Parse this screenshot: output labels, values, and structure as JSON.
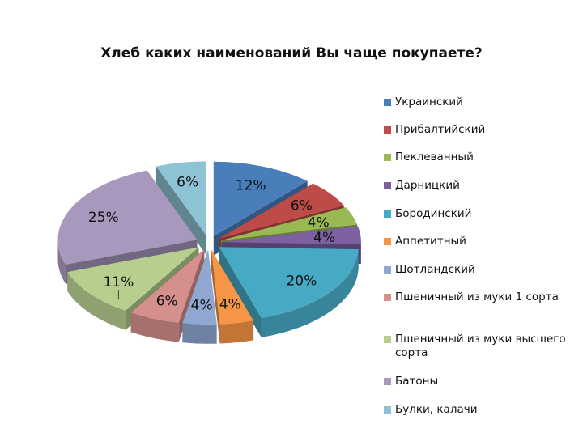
{
  "chart_data": {
    "type": "pie",
    "style": "3d-exploded",
    "title": "Хлеб каких наименований Вы чаще покупаете?",
    "legend_position": "right",
    "categories": [
      "Украинский",
      "Прибалтийский",
      "Пеклеванный",
      "Дарницкий",
      "Бородинский",
      "Аппетитный",
      "Шотландский",
      "Пшеничный из муки 1 сорта",
      "Пшеничный из муки высшего сорта",
      "Батоны",
      "Булки, калачи"
    ],
    "values": [
      12,
      6,
      4,
      4,
      20,
      4,
      4,
      6,
      11,
      25,
      6
    ],
    "labels": [
      "12%",
      "6%",
      "4%",
      "4%",
      "20%",
      "4%",
      "4%",
      "6%",
      "11%",
      "25%",
      "6%"
    ],
    "colors": [
      "#4A7EBB",
      "#BE4B48",
      "#98B954",
      "#7D60A0",
      "#46AAC5",
      "#F79646",
      "#8FA7D1",
      "#D58F8D",
      "#B7CE8F",
      "#A898BE",
      "#8DC3D4"
    ]
  }
}
